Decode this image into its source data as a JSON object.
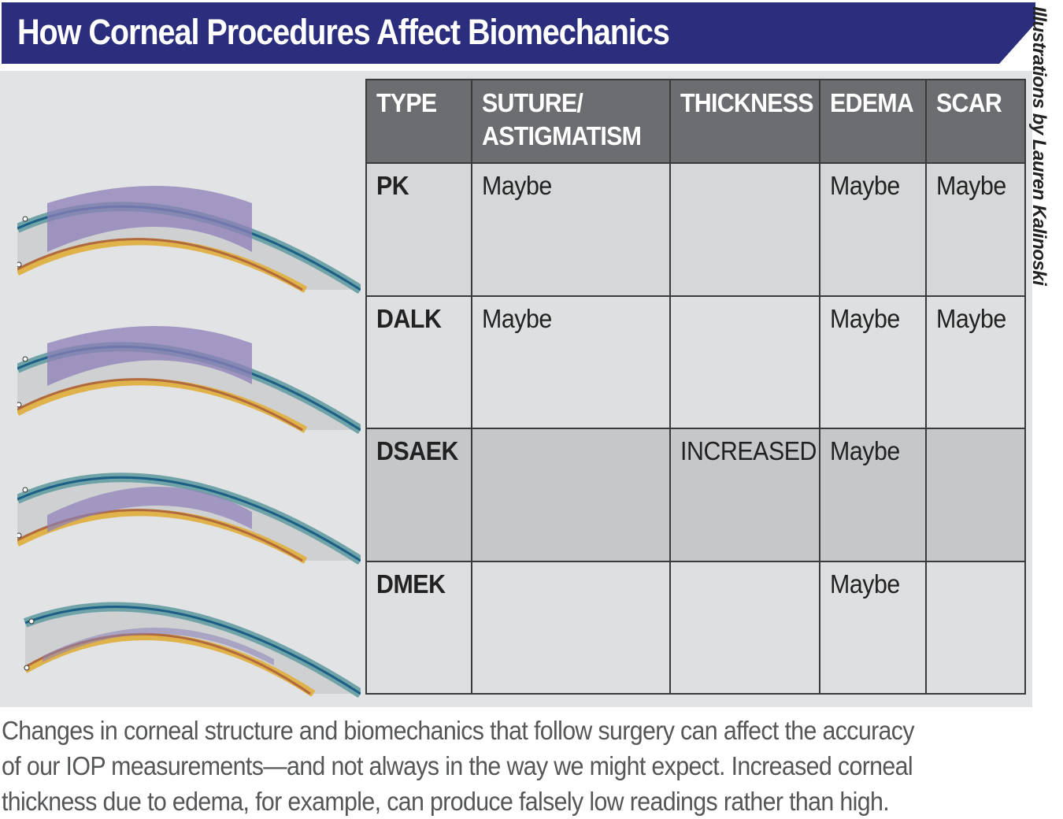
{
  "title": "How Corneal Procedures Affect Biomechanics",
  "credit": "Illustrations by Lauren Kalinoski",
  "colors": {
    "title_bg": "#2b2d7d",
    "header_bg": "#6c6d70",
    "graft": "#8d7fb8",
    "epithelium": "#6fa3a8",
    "endothelium": "#e0b24a"
  },
  "table": {
    "headers": {
      "type": "TYPE",
      "suture_line1": "SUTURE/",
      "suture_line2": "ASTIGMATISM",
      "thickness": "THICKNESS",
      "edema": "EDEMA",
      "scar": "SCAR"
    },
    "rows": [
      {
        "type": "PK",
        "suture": "Maybe",
        "thickness": "",
        "edema": "Maybe",
        "scar": "Maybe"
      },
      {
        "type": "DALK",
        "suture": "Maybe",
        "thickness": "",
        "edema": "Maybe",
        "scar": "Maybe"
      },
      {
        "type": "DSAEK",
        "suture": "",
        "thickness": "INCREASED",
        "edema": "Maybe",
        "scar": ""
      },
      {
        "type": "DMEK",
        "suture": "",
        "thickness": "",
        "edema": "Maybe",
        "scar": ""
      }
    ]
  },
  "illustrations": {
    "pk": "full-thickness-graft-illustration",
    "dalk": "anterior-lamellar-graft-illustration",
    "dsaek": "posterior-stroma-graft-illustration",
    "dmek": "endothelial-graft-illustration"
  },
  "caption": {
    "line1": "Changes in corneal structure and biomechanics that follow surgery can affect the accuracy",
    "line2": "of our IOP measurements—and not always in the way we might expect. Increased corneal",
    "line3": "thickness due to edema, for example, can produce falsely low readings rather than high."
  }
}
